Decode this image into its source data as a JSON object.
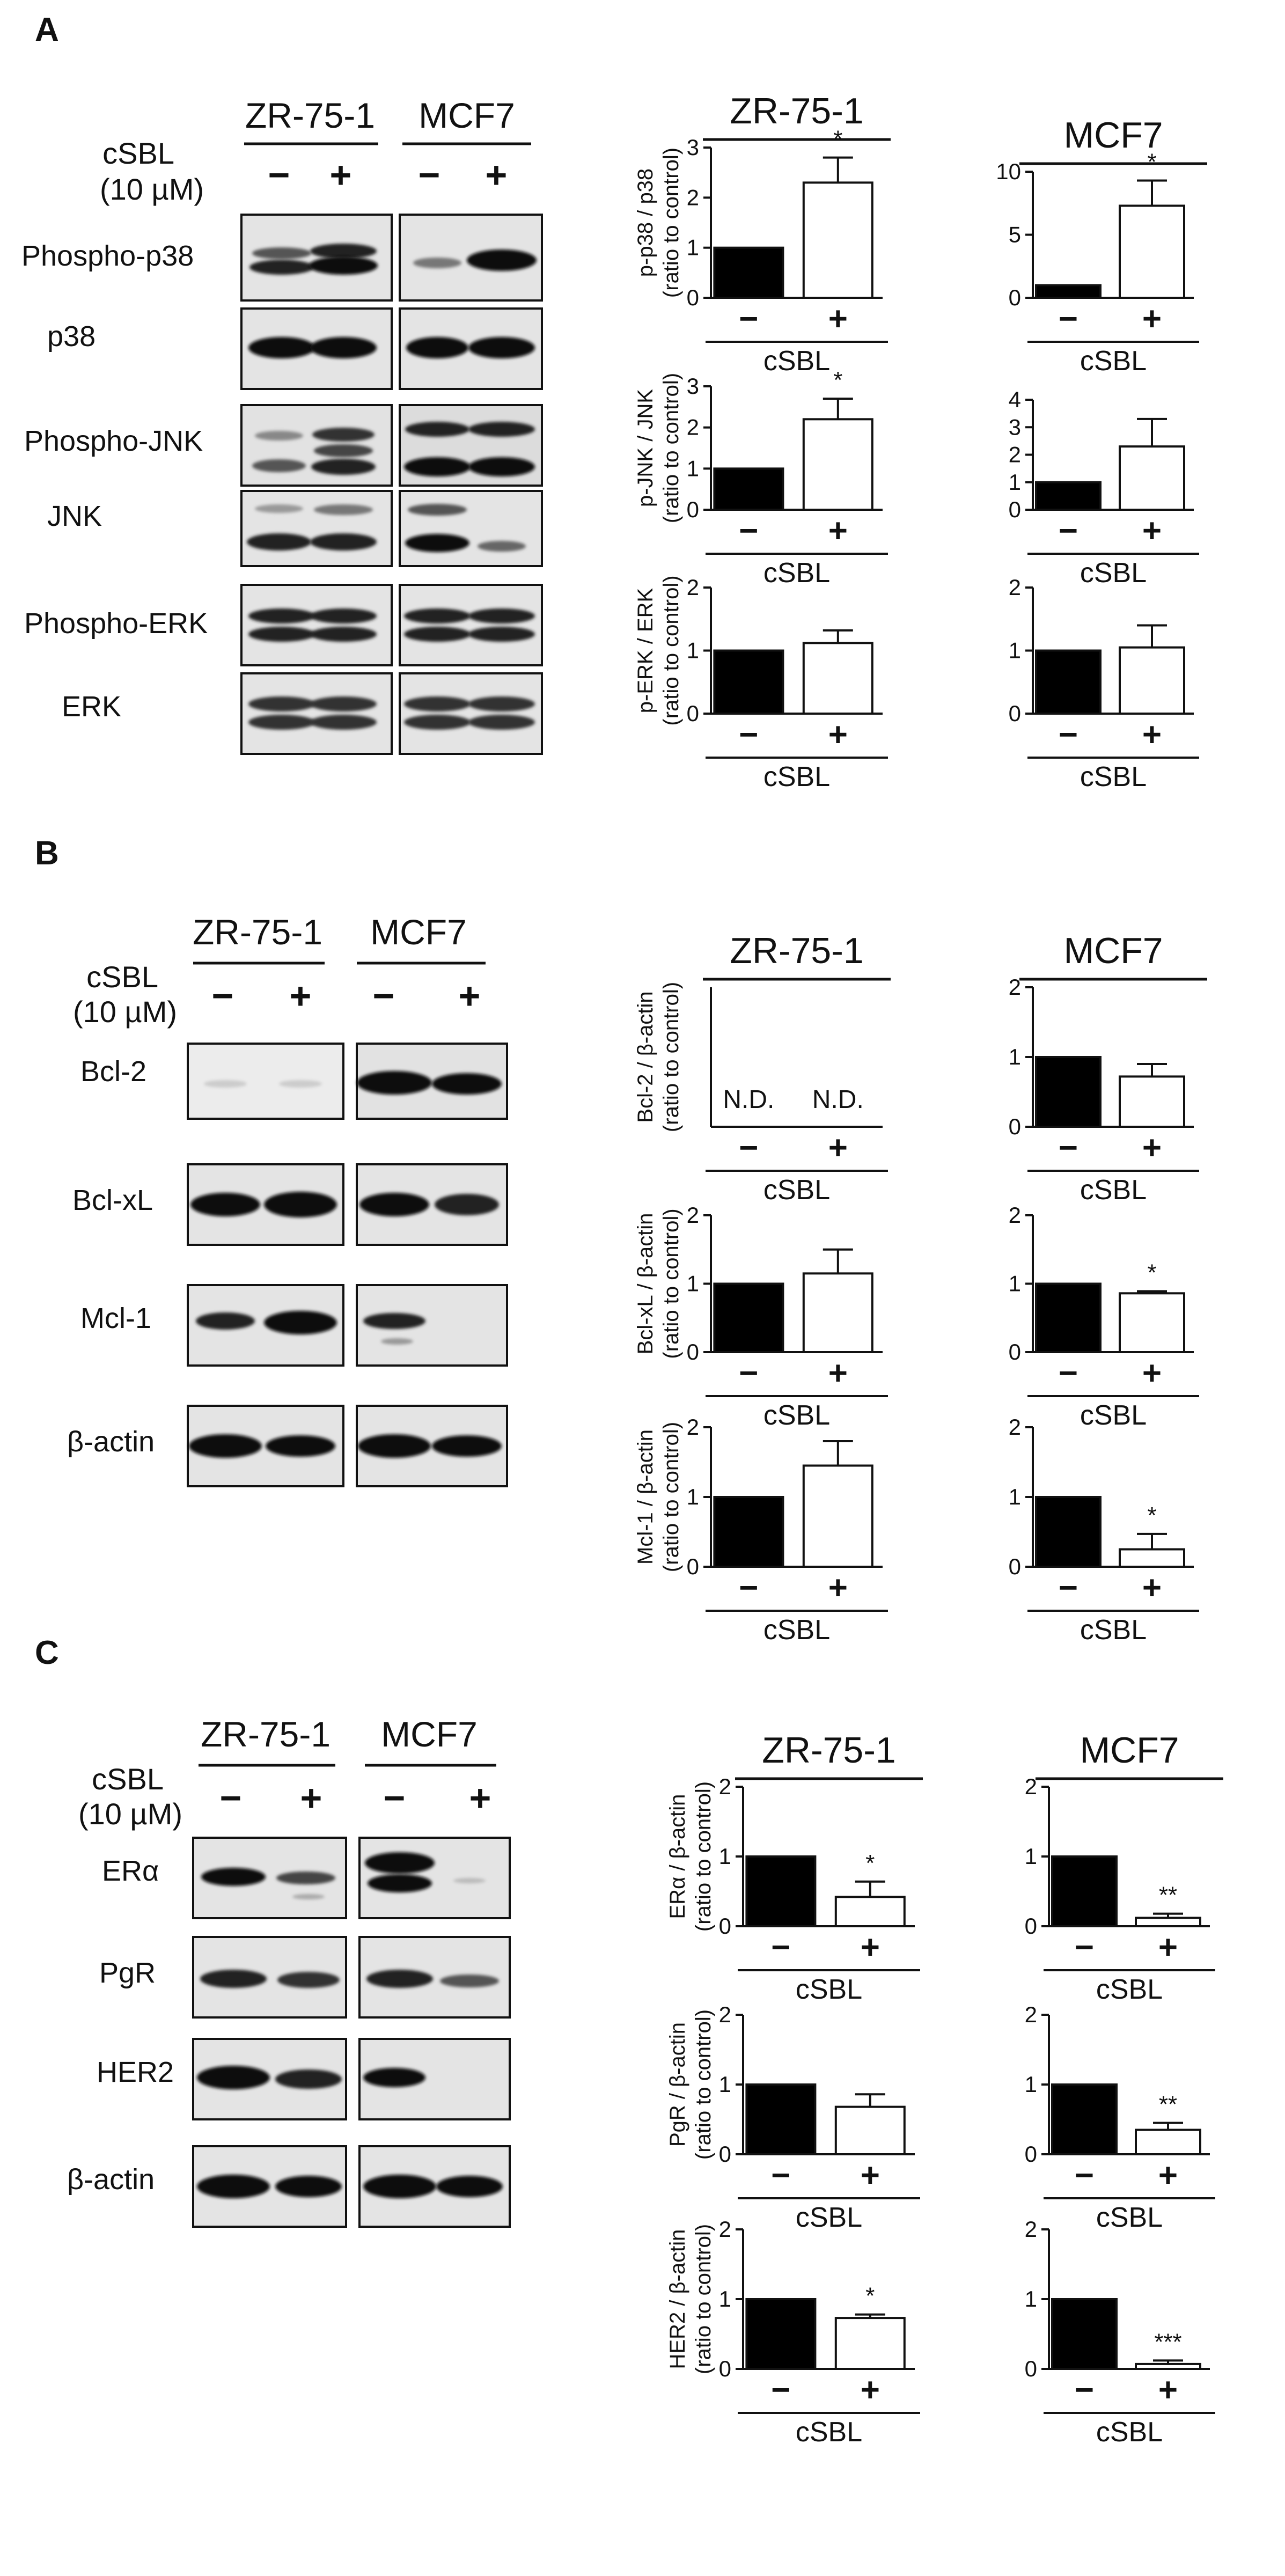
{
  "figure": {
    "panels": [
      {
        "label": "A",
        "cell_lines": [
          "ZR-75-1",
          "MCF7"
        ],
        "treatment_label": [
          "cSBL",
          "(10 µM)"
        ],
        "treatment_signs": [
          "−",
          "+"
        ],
        "proteins": [
          "Phospho-p38",
          "p38",
          "Phospho-JNK",
          "JNK",
          "Phospho-ERK",
          "ERK"
        ]
      },
      {
        "label": "B",
        "cell_lines": [
          "ZR-75-1",
          "MCF7"
        ],
        "treatment_label": [
          "cSBL",
          "(10 µM)"
        ],
        "treatment_signs": [
          "−",
          "+"
        ],
        "proteins": [
          "Bcl-2",
          "Bcl-xL",
          "Mcl-1",
          "β-actin"
        ]
      },
      {
        "label": "C",
        "cell_lines": [
          "ZR-75-1",
          "MCF7"
        ],
        "treatment_label": [
          "cSBL",
          "(10 µM)"
        ],
        "treatment_signs": [
          "−",
          "+"
        ],
        "proteins": [
          "ERα",
          "PgR",
          "HER2",
          "β-actin"
        ]
      }
    ]
  },
  "chart_data": [
    {
      "type": "bar",
      "panel": "A",
      "title": "ZR-75-1",
      "ylabel": [
        "p-p38 / p38",
        "(ratio to control)"
      ],
      "xlabel": "cSBL",
      "categories": [
        "−",
        "+"
      ],
      "values": [
        1.0,
        2.3
      ],
      "errors": [
        0,
        0.5
      ],
      "ylim": [
        0,
        3
      ],
      "yticks": [
        0,
        1,
        2,
        3
      ],
      "annotations": [
        "",
        "*"
      ],
      "bar_colors": [
        "#000000",
        "#ffffff"
      ]
    },
    {
      "type": "bar",
      "panel": "A",
      "title": "MCF7",
      "ylabel": [],
      "xlabel": "cSBL",
      "categories": [
        "−",
        "+"
      ],
      "values": [
        1.0,
        7.3
      ],
      "errors": [
        0,
        2.0
      ],
      "ylim": [
        0,
        10
      ],
      "yticks": [
        0,
        5,
        10
      ],
      "annotations": [
        "",
        "*"
      ],
      "bar_colors": [
        "#000000",
        "#ffffff"
      ]
    },
    {
      "type": "bar",
      "panel": "A",
      "title": "",
      "ylabel": [
        "p-JNK / JNK",
        "(ratio to control)"
      ],
      "xlabel": "cSBL",
      "categories": [
        "−",
        "+"
      ],
      "values": [
        1.0,
        2.2
      ],
      "errors": [
        0,
        0.5
      ],
      "ylim": [
        0,
        3
      ],
      "yticks": [
        0,
        1,
        2,
        3
      ],
      "annotations": [
        "",
        "*"
      ],
      "bar_colors": [
        "#000000",
        "#ffffff"
      ]
    },
    {
      "type": "bar",
      "panel": "A",
      "title": "",
      "ylabel": [],
      "xlabel": "cSBL",
      "categories": [
        "−",
        "+"
      ],
      "values": [
        1.0,
        2.3
      ],
      "errors": [
        0,
        1.0
      ],
      "ylim": [
        0,
        4
      ],
      "yticks": [
        0,
        1,
        2,
        3,
        4
      ],
      "annotations": [
        "",
        ""
      ],
      "bar_colors": [
        "#000000",
        "#ffffff"
      ]
    },
    {
      "type": "bar",
      "panel": "A",
      "title": "",
      "ylabel": [
        "p-ERK / ERK",
        "(ratio to control)"
      ],
      "xlabel": "cSBL",
      "categories": [
        "−",
        "+"
      ],
      "values": [
        1.0,
        1.12
      ],
      "errors": [
        0,
        0.2
      ],
      "ylim": [
        0,
        2
      ],
      "yticks": [
        0,
        1,
        2
      ],
      "annotations": [
        "",
        ""
      ],
      "bar_colors": [
        "#000000",
        "#ffffff"
      ]
    },
    {
      "type": "bar",
      "panel": "A",
      "title": "",
      "ylabel": [],
      "xlabel": "cSBL",
      "categories": [
        "−",
        "+"
      ],
      "values": [
        1.0,
        1.05
      ],
      "errors": [
        0,
        0.35
      ],
      "ylim": [
        0,
        2
      ],
      "yticks": [
        0,
        1,
        2
      ],
      "annotations": [
        "",
        ""
      ],
      "bar_colors": [
        "#000000",
        "#ffffff"
      ]
    },
    {
      "type": "bar",
      "panel": "B",
      "title": "ZR-75-1",
      "ylabel": [
        "Bcl-2 / β-actin",
        "(ratio to control)"
      ],
      "xlabel": "cSBL",
      "categories": [
        "−",
        "+"
      ],
      "values": [
        0,
        0
      ],
      "errors": [
        0,
        0
      ],
      "ylim": [
        0,
        2
      ],
      "yticks": [],
      "annotations": [
        "N.D.",
        "N.D."
      ],
      "bar_colors": [
        "#000000",
        "#ffffff"
      ]
    },
    {
      "type": "bar",
      "panel": "B",
      "title": "MCF7",
      "ylabel": [],
      "xlabel": "cSBL",
      "categories": [
        "−",
        "+"
      ],
      "values": [
        1.0,
        0.72
      ],
      "errors": [
        0,
        0.18
      ],
      "ylim": [
        0,
        2
      ],
      "yticks": [
        0,
        1,
        2
      ],
      "annotations": [
        "",
        ""
      ],
      "bar_colors": [
        "#000000",
        "#ffffff"
      ]
    },
    {
      "type": "bar",
      "panel": "B",
      "title": "",
      "ylabel": [
        "Bcl-xL / β-actin",
        "(ratio to control)"
      ],
      "xlabel": "cSBL",
      "categories": [
        "−",
        "+"
      ],
      "values": [
        1.0,
        1.15
      ],
      "errors": [
        0,
        0.35
      ],
      "ylim": [
        0,
        2
      ],
      "yticks": [
        0,
        1,
        2
      ],
      "annotations": [
        "",
        ""
      ],
      "bar_colors": [
        "#000000",
        "#ffffff"
      ]
    },
    {
      "type": "bar",
      "panel": "B",
      "title": "",
      "ylabel": [],
      "xlabel": "cSBL",
      "categories": [
        "−",
        "+"
      ],
      "values": [
        1.0,
        0.86
      ],
      "errors": [
        0,
        0.03
      ],
      "ylim": [
        0,
        2
      ],
      "yticks": [
        0,
        1,
        2
      ],
      "annotations": [
        "",
        "*"
      ],
      "bar_colors": [
        "#000000",
        "#ffffff"
      ]
    },
    {
      "type": "bar",
      "panel": "B",
      "title": "",
      "ylabel": [
        "Mcl-1 / β-actin",
        "(ratio to control)"
      ],
      "xlabel": "cSBL",
      "categories": [
        "−",
        "+"
      ],
      "values": [
        1.0,
        1.45
      ],
      "errors": [
        0,
        0.35
      ],
      "ylim": [
        0,
        2
      ],
      "yticks": [
        0,
        1,
        2
      ],
      "annotations": [
        "",
        ""
      ],
      "bar_colors": [
        "#000000",
        "#ffffff"
      ]
    },
    {
      "type": "bar",
      "panel": "B",
      "title": "",
      "ylabel": [],
      "xlabel": "cSBL",
      "categories": [
        "−",
        "+"
      ],
      "values": [
        1.0,
        0.25
      ],
      "errors": [
        0,
        0.22
      ],
      "ylim": [
        0,
        2
      ],
      "yticks": [
        0,
        1,
        2
      ],
      "annotations": [
        "",
        "*"
      ],
      "bar_colors": [
        "#000000",
        "#ffffff"
      ]
    },
    {
      "type": "bar",
      "panel": "C",
      "title": "ZR-75-1",
      "ylabel": [
        "ERα / β-actin",
        "(ratio to control)"
      ],
      "xlabel": "cSBL",
      "categories": [
        "−",
        "+"
      ],
      "values": [
        1.0,
        0.42
      ],
      "errors": [
        0,
        0.22
      ],
      "ylim": [
        0,
        2
      ],
      "yticks": [
        0,
        1,
        2
      ],
      "annotations": [
        "",
        "*"
      ],
      "bar_colors": [
        "#000000",
        "#ffffff"
      ]
    },
    {
      "type": "bar",
      "panel": "C",
      "title": "MCF7",
      "ylabel": [],
      "xlabel": "cSBL",
      "categories": [
        "−",
        "+"
      ],
      "values": [
        1.0,
        0.12
      ],
      "errors": [
        0,
        0.06
      ],
      "ylim": [
        0,
        2
      ],
      "yticks": [
        0,
        1,
        2
      ],
      "annotations": [
        "",
        "**"
      ],
      "bar_colors": [
        "#000000",
        "#ffffff"
      ]
    },
    {
      "type": "bar",
      "panel": "C",
      "title": "",
      "ylabel": [
        "PgR / β-actin",
        "(ratio to control)"
      ],
      "xlabel": "cSBL",
      "categories": [
        "−",
        "+"
      ],
      "values": [
        1.0,
        0.68
      ],
      "errors": [
        0,
        0.18
      ],
      "ylim": [
        0,
        2
      ],
      "yticks": [
        0,
        1,
        2
      ],
      "annotations": [
        "",
        ""
      ],
      "bar_colors": [
        "#000000",
        "#ffffff"
      ]
    },
    {
      "type": "bar",
      "panel": "C",
      "title": "",
      "ylabel": [],
      "xlabel": "cSBL",
      "categories": [
        "−",
        "+"
      ],
      "values": [
        1.0,
        0.35
      ],
      "errors": [
        0,
        0.1
      ],
      "ylim": [
        0,
        2
      ],
      "yticks": [
        0,
        1,
        2
      ],
      "annotations": [
        "",
        "**"
      ],
      "bar_colors": [
        "#000000",
        "#ffffff"
      ]
    },
    {
      "type": "bar",
      "panel": "C",
      "title": "",
      "ylabel": [
        "HER2 / β-actin",
        "(ratio to control)"
      ],
      "xlabel": "cSBL",
      "categories": [
        "−",
        "+"
      ],
      "values": [
        1.0,
        0.73
      ],
      "errors": [
        0,
        0.05
      ],
      "ylim": [
        0,
        2
      ],
      "yticks": [
        0,
        1,
        2
      ],
      "annotations": [
        "",
        "*"
      ],
      "bar_colors": [
        "#000000",
        "#ffffff"
      ]
    },
    {
      "type": "bar",
      "panel": "C",
      "title": "",
      "ylabel": [],
      "xlabel": "cSBL",
      "categories": [
        "−",
        "+"
      ],
      "values": [
        1.0,
        0.07
      ],
      "errors": [
        0,
        0.05
      ],
      "ylim": [
        0,
        2
      ],
      "yticks": [
        0,
        1,
        2
      ],
      "annotations": [
        "",
        "***"
      ],
      "bar_colors": [
        "#000000",
        "#ffffff"
      ]
    }
  ]
}
